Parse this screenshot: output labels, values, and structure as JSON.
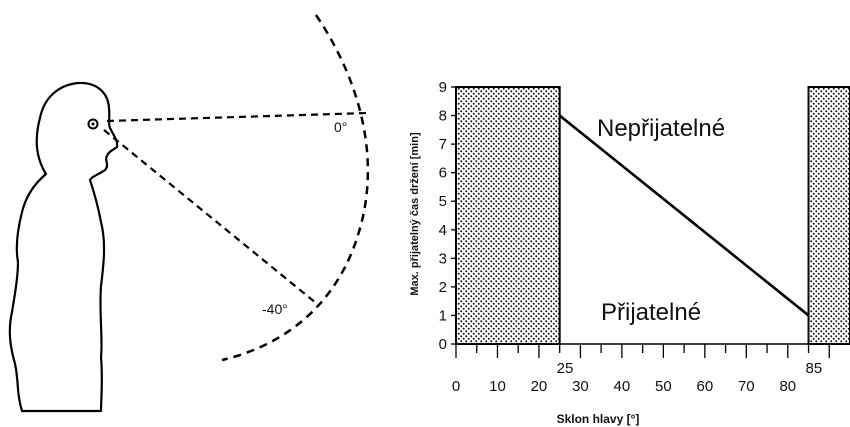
{
  "figure": {
    "angle_zero_label": "0°",
    "angle_neg40_label": "-40°"
  },
  "chart_data": {
    "type": "line",
    "xlabel": "Sklon hlavy [°]",
    "ylabel": "Max. přijatelný čas držení [min]",
    "xlim": [
      0,
      95
    ],
    "ylim": [
      0,
      9
    ],
    "x_ticks": [
      0,
      10,
      20,
      30,
      40,
      50,
      60,
      70,
      80
    ],
    "x_tick_extra": [
      25,
      85
    ],
    "y_ticks": [
      0,
      1,
      2,
      3,
      4,
      5,
      6,
      7,
      8,
      9
    ],
    "series": [
      {
        "x": [
          25,
          85
        ],
        "y": [
          8,
          1
        ]
      }
    ],
    "shaded_regions": [
      {
        "x_from": 0,
        "x_to": 25
      },
      {
        "x_from": 85,
        "x_to": 95
      }
    ],
    "annotations": {
      "above": "Nepřijatelné",
      "below": "Přijatelné"
    },
    "grid": false
  }
}
